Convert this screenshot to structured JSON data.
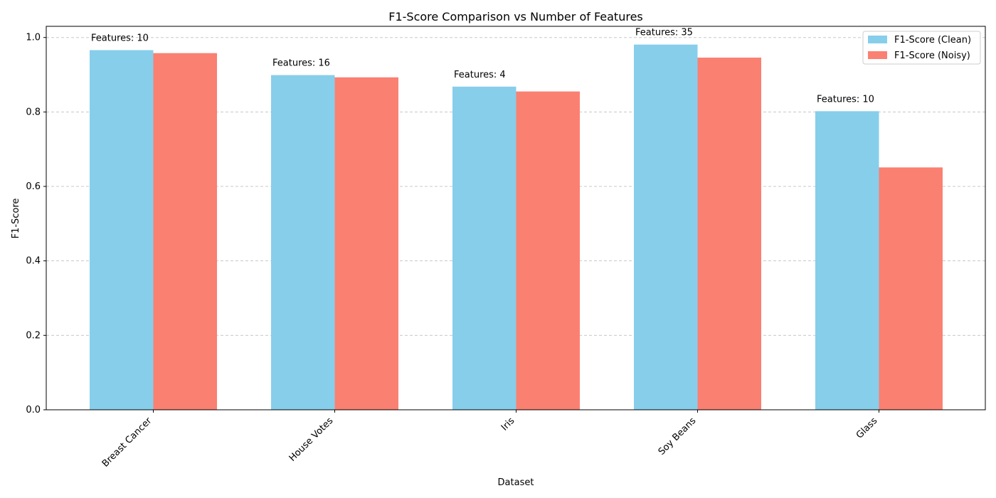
{
  "chart_data": {
    "type": "bar",
    "title": "F1-Score Comparison vs Number of Features",
    "xlabel": "Dataset",
    "ylabel": "F1-Score",
    "categories": [
      "Breast Cancer",
      "House Votes",
      "Iris",
      "Soy Beans",
      "Glass"
    ],
    "series": [
      {
        "name": "F1-Score (Clean)",
        "color": "#87ceeb",
        "values": [
          0.966,
          0.899,
          0.868,
          0.981,
          0.802
        ]
      },
      {
        "name": "F1-Score (Noisy)",
        "color": "#fa8072",
        "values": [
          0.958,
          0.893,
          0.855,
          0.946,
          0.651
        ]
      }
    ],
    "annotations": [
      "Features: 10",
      "Features: 16",
      "Features: 4",
      "Features: 35",
      "Features: 10"
    ],
    "ylim": [
      0,
      1.03
    ],
    "yticks": [
      0.0,
      0.2,
      0.4,
      0.6,
      0.8,
      1.0
    ],
    "ytick_labels": [
      "0.0",
      "0.2",
      "0.4",
      "0.6",
      "0.8",
      "1.0"
    ],
    "grid": "y-dashed",
    "legend_position": "top-right"
  }
}
